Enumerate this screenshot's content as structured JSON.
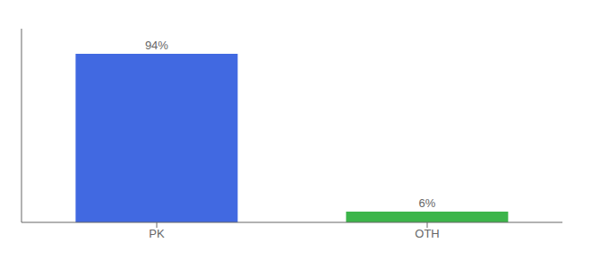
{
  "chart_data": {
    "type": "bar",
    "categories": [
      "PK",
      "OTH"
    ],
    "values": [
      94,
      6
    ],
    "value_labels": [
      "94%",
      "6%"
    ],
    "colors": [
      "#4169e1",
      "#3cb54a"
    ],
    "ylim": [
      0,
      108
    ],
    "data_labels": true,
    "tick_labels": "x",
    "grid": false
  }
}
